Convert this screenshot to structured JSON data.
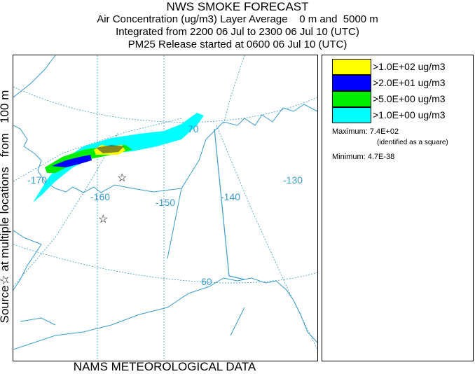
{
  "title": "NWS SMOKE FORECAST",
  "subtitle_1": "Air Concentration (ug/m3) Layer Average    0 m and  5000 m",
  "subtitle_2": "Integrated from 2200 06 Jul to 2300 06 Jul 10 (UTC)",
  "subtitle_3": "PM25 Release started at 0600 06 Jul 10 (UTC)",
  "side_label": "Source☆ at multiple locations   from   100 m",
  "footer": "NAMS METEOROLOGICAL DATA",
  "map": {
    "longitude_labels": [
      "-170",
      "-160",
      "-150",
      "-140",
      "-130"
    ],
    "latitude_labels": [
      "70",
      "60"
    ],
    "source_marker": "☆",
    "colors": {
      "coastline": "#3a9bcb",
      "graticule": "#3a9bcb"
    }
  },
  "legend": {
    "items": [
      {
        "label": ">1.0E+02 ug/m3",
        "color": "#ffff00"
      },
      {
        "label": ">2.0E+01 ug/m3",
        "color": "#0000ff"
      },
      {
        "label": ">5.0E+00 ug/m3",
        "color": "#00ee00"
      },
      {
        "label": ">1.0E+00 ug/m3",
        "color": "#00ffff"
      }
    ],
    "maximum": "Maximum: 7.4E+02",
    "maximum_note": "(identified as a square)",
    "minimum": "Minimum: 4.7E-38"
  }
}
